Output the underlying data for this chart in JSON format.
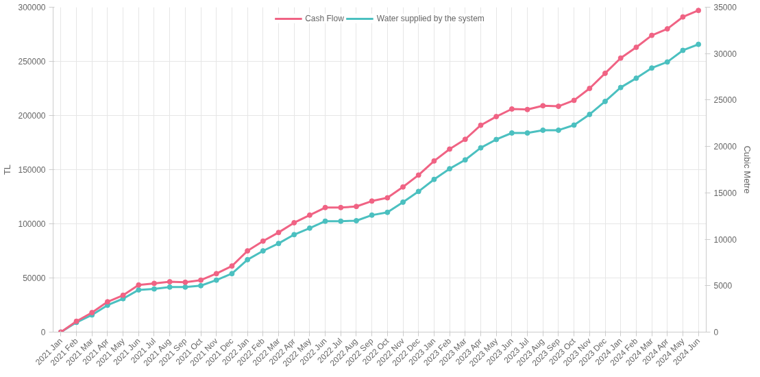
{
  "chart_data": {
    "type": "line",
    "categories": [
      "2021 Jan",
      "2021 Feb",
      "2021 Mar",
      "2021 Apr",
      "2021 May",
      "2021 Jun",
      "2021 Jul",
      "2021 Aug",
      "2021 Sep",
      "2021 Oct",
      "2021 Nov",
      "2021 Dec",
      "2022 Jan",
      "2022 Feb",
      "2022 Mar",
      "2022 Apr",
      "2022 May",
      "2022 Jun",
      "2022 Jul",
      "2022 Aug",
      "2022 Sep",
      "2022 Oct",
      "2022 Nov",
      "2022 Dec",
      "2023 Jan",
      "2023 Feb",
      "2023 Mar",
      "2023 Apr",
      "2023 May",
      "2023 Jun",
      "2023 Jul",
      "2023 Aug",
      "2023 Sep",
      "2023 Oct",
      "2023 Nov",
      "2023 Dec",
      "2024 Jan",
      "2024 Feb",
      "2024 Mar",
      "2024 Apr",
      "2024 May",
      "2024 Jun"
    ],
    "series": [
      {
        "name": "Cash Flow",
        "color": "#f06384",
        "values": [
          0,
          10000,
          18000,
          28000,
          34000,
          43500,
          45000,
          46500,
          46000,
          48000,
          54000,
          61000,
          75000,
          84000,
          92000,
          101000,
          108000,
          115000,
          115000,
          116000,
          121000,
          124000,
          134000,
          145000,
          158000,
          169000,
          178000,
          191000,
          199000,
          206000,
          205500,
          209000,
          208500,
          214000,
          225000,
          239000,
          253000,
          263000,
          274000,
          280000,
          291000,
          297000
        ]
      },
      {
        "name": "Water supplied by the system",
        "color": "#4bc0c0",
        "axis": "y2",
        "values": [
          0,
          1050,
          1850,
          2900,
          3600,
          4550,
          4650,
          4850,
          4850,
          5000,
          5600,
          6300,
          7800,
          8750,
          9550,
          10500,
          11200,
          11950,
          11950,
          12000,
          12600,
          12900,
          14000,
          15150,
          16450,
          17600,
          18550,
          19850,
          20750,
          21450,
          21450,
          21750,
          21750,
          22300,
          23450,
          24850,
          26350,
          27350,
          28450,
          29100,
          30350,
          31000
        ]
      }
    ],
    "ylabel": "TL",
    "y2label": "Cubic Metre",
    "ylim": [
      0,
      300000
    ],
    "yticks": [
      0,
      50000,
      100000,
      150000,
      200000,
      250000,
      300000
    ],
    "y2lim": [
      0,
      35000
    ],
    "y2ticks": [
      0,
      5000,
      10000,
      15000,
      20000,
      25000,
      30000,
      35000
    ],
    "grid": true,
    "legend": "top",
    "marker": "circle",
    "line_style": "solid"
  }
}
